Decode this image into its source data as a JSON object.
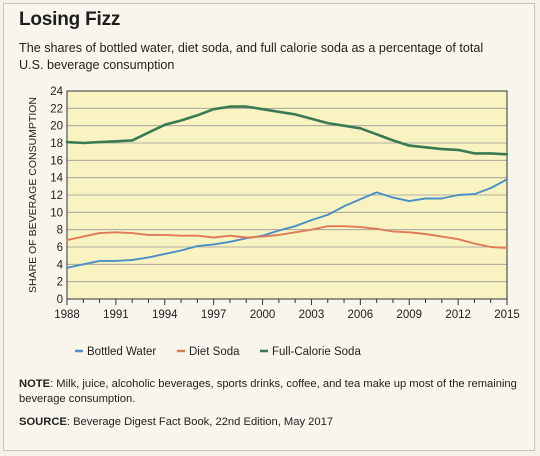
{
  "header": {
    "title": "Losing Fizz",
    "subtitle": "The shares of bottled water, diet soda, and full calorie soda as a percentage of total U.S. beverage consumption"
  },
  "footer": {
    "note_label": "NOTE",
    "note_text": ": Milk, juice, alcoholic beverages, sports drinks, coffee, and tea make up most of the remaining beverage consumption.",
    "source_label": "SOURCE",
    "source_text": ": Beverage Digest Fact Book, 22nd Edition, May 2017"
  },
  "colors": {
    "plot_background": "#f8f3c1",
    "grid": "#9a9a9a",
    "axis": "#333333"
  },
  "chart_data": {
    "type": "line",
    "xlabel": "",
    "ylabel": "SHARE OF BEVERAGE CONSUMPTION",
    "xlim": [
      1988,
      2015
    ],
    "ylim": [
      0,
      24
    ],
    "x_ticks": [
      1988,
      1991,
      1994,
      1997,
      2000,
      2003,
      2006,
      2009,
      2012,
      2015
    ],
    "y_ticks": [
      0,
      2,
      4,
      6,
      8,
      10,
      12,
      14,
      16,
      18,
      20,
      22,
      24
    ],
    "grid": "horizontal",
    "legend_position": "bottom",
    "x": [
      1988,
      1989,
      1990,
      1991,
      1992,
      1993,
      1994,
      1995,
      1996,
      1997,
      1998,
      1999,
      2000,
      2001,
      2002,
      2003,
      2004,
      2005,
      2006,
      2007,
      2008,
      2009,
      2010,
      2011,
      2012,
      2013,
      2014,
      2015
    ],
    "series": [
      {
        "name": "Bottled Water",
        "color": "#4a8fc7",
        "values": [
          3.6,
          4.0,
          4.4,
          4.4,
          4.5,
          4.8,
          5.2,
          5.6,
          6.1,
          6.3,
          6.6,
          7.0,
          7.3,
          7.9,
          8.4,
          9.1,
          9.7,
          10.7,
          11.5,
          12.3,
          11.7,
          11.3,
          11.6,
          11.6,
          12.0,
          12.1,
          12.8,
          13.8
        ]
      },
      {
        "name": "Diet Soda",
        "color": "#e07a58",
        "values": [
          6.8,
          7.2,
          7.6,
          7.7,
          7.6,
          7.4,
          7.4,
          7.3,
          7.3,
          7.1,
          7.3,
          7.1,
          7.2,
          7.4,
          7.7,
          8.0,
          8.4,
          8.4,
          8.3,
          8.1,
          7.8,
          7.7,
          7.5,
          7.2,
          6.9,
          6.4,
          6.0,
          5.9
        ]
      },
      {
        "name": "Full-Calorie Soda",
        "color": "#3a7a52",
        "values": [
          18.1,
          18.0,
          18.1,
          18.2,
          18.3,
          19.2,
          20.1,
          20.6,
          21.2,
          21.9,
          22.2,
          22.2,
          21.9,
          21.6,
          21.3,
          20.8,
          20.3,
          20.0,
          19.7,
          19.0,
          18.3,
          17.7,
          17.5,
          17.3,
          17.2,
          16.8,
          16.8,
          16.7
        ]
      }
    ]
  }
}
